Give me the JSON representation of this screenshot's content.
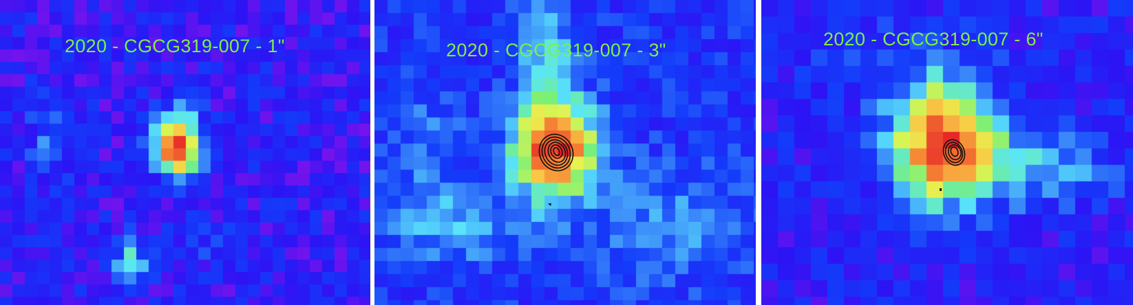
{
  "panels": [
    {
      "label": "2020 - CGCG319-007 - 1\"",
      "has_contours": false
    },
    {
      "label": "2020 - CGCG319-007 - 3\"",
      "has_contours": true
    },
    {
      "label": "2020 - CGCG319-007 - 6\"",
      "has_contours": true
    }
  ],
  "colors": {
    "label_text": "#7cf04a",
    "contour": "#111111",
    "divider": "#ffffff"
  }
}
